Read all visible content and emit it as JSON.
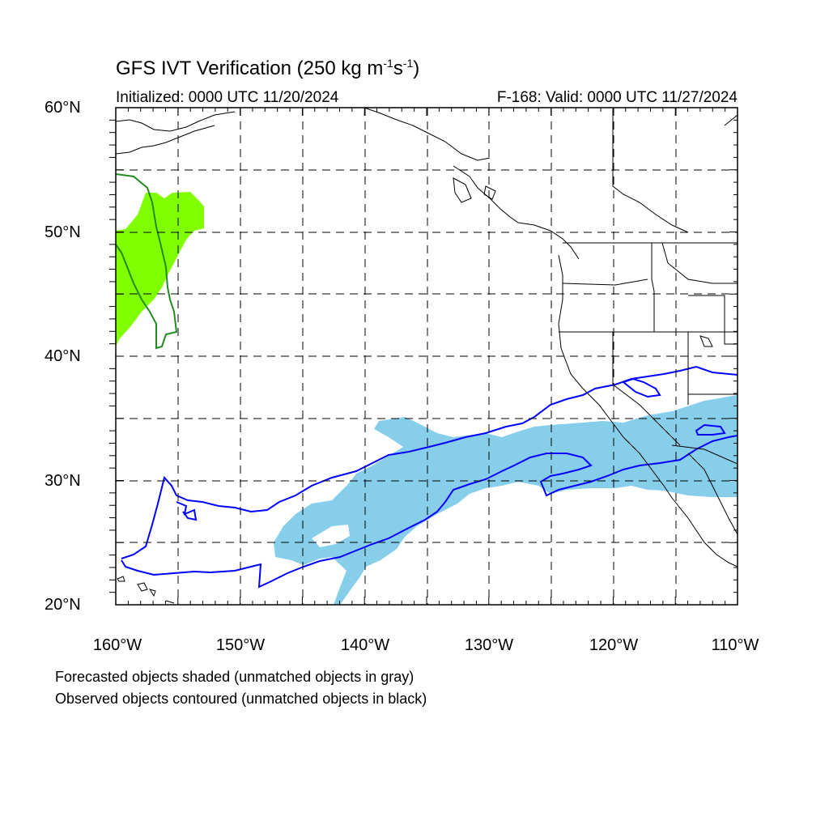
{
  "title": {
    "main": "GFS IVT Verification (250 kg m",
    "exp1": "-1",
    "mid": "s",
    "exp2": "-1",
    "end": ")"
  },
  "initialized": "Initialized: 0000 UTC 11/20/2024",
  "valid": "F-168: Valid: 0000 UTC 11/27/2024",
  "lat_labels": [
    "60°N",
    "50°N",
    "40°N",
    "30°N",
    "20°N"
  ],
  "lon_labels": [
    "160°W",
    "150°W",
    "140°W",
    "130°W",
    "120°W",
    "110°W"
  ],
  "captions": [
    "Forecasted objects shaded (unmatched objects in gray)",
    "Observed objects contoured (unmatched objects in black)"
  ],
  "colors": {
    "forecast_matched_1": "#87ceeb",
    "forecast_matched_2": "#80ff00",
    "observed_matched_1": "#0000ff",
    "observed_matched_2": "#228b22",
    "coastline": "#000000",
    "grid": "#000000"
  },
  "map_extent": {
    "lon_min": -160,
    "lon_max": -110,
    "lat_min": 20,
    "lat_max": 60
  }
}
